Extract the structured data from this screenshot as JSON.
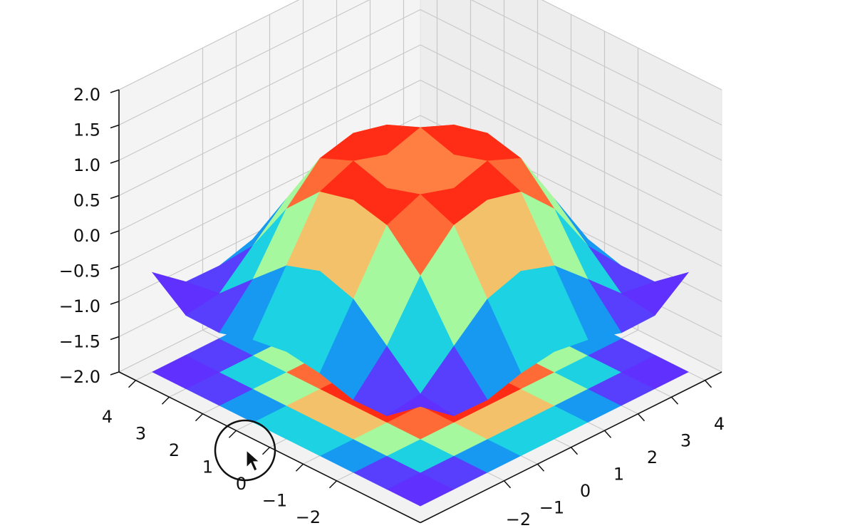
{
  "chart_data": {
    "type": "surface3d",
    "colormap": "rainbow",
    "x": [
      -4,
      -3,
      -2,
      -1,
      0,
      1,
      2,
      3,
      4
    ],
    "y": [
      -4,
      -3,
      -2,
      -1,
      0,
      1,
      2,
      3,
      4
    ],
    "z": [
      [
        -0.59,
        -0.96,
        -0.97,
        -0.83,
        -0.76,
        -0.83,
        -0.97,
        -0.96,
        -0.59
      ],
      [
        -0.96,
        -0.89,
        -0.45,
        -0.02,
        0.14,
        -0.02,
        -0.45,
        -0.89,
        -0.96
      ],
      [
        -0.97,
        -0.45,
        0.31,
        0.79,
        0.91,
        0.79,
        0.31,
        -0.45,
        -0.97
      ],
      [
        -0.83,
        -0.02,
        0.79,
        0.99,
        0.84,
        0.99,
        0.79,
        -0.02,
        -0.83
      ],
      [
        -0.76,
        0.14,
        0.91,
        0.84,
        0,
        0.84,
        0.91,
        0.14,
        -0.76
      ],
      [
        -0.83,
        -0.02,
        0.79,
        0.99,
        0.84,
        0.99,
        0.79,
        -0.02,
        -0.83
      ],
      [
        -0.97,
        -0.45,
        0.31,
        0.79,
        0.91,
        0.79,
        0.31,
        -0.45,
        -0.97
      ],
      [
        -0.96,
        -0.89,
        -0.45,
        -0.02,
        0.14,
        -0.02,
        -0.45,
        -0.89,
        -0.96
      ],
      [
        -0.59,
        -0.96,
        -0.97,
        -0.83,
        -0.76,
        -0.83,
        -0.97,
        -0.96,
        -0.59
      ]
    ],
    "floor_contour": true,
    "xlim": [
      -4.5,
      4.5
    ],
    "ylim": [
      -4.5,
      4.5
    ],
    "zlim": [
      -2,
      2
    ],
    "xticks": [
      {
        "value": -2,
        "label": "−2"
      },
      {
        "value": -1,
        "label": "−1"
      },
      0,
      1,
      2,
      3,
      4
    ],
    "yticks": [
      {
        "value": -2,
        "label": "−2"
      },
      {
        "value": -1,
        "label": "−1"
      },
      0,
      1,
      2,
      3,
      4
    ],
    "zticks": [
      {
        "value": -2,
        "label": "−2.0"
      },
      {
        "value": -1.5,
        "label": "−1.5"
      },
      {
        "value": -1,
        "label": "−1.0"
      },
      {
        "value": -0.5,
        "label": "−0.5"
      },
      {
        "value": 0,
        "label": "0.0"
      },
      {
        "value": 0.5,
        "label": "0.5"
      },
      {
        "value": 1,
        "label": "1.0"
      },
      {
        "value": 1.5,
        "label": "1.5"
      },
      {
        "value": 2,
        "label": "2.0"
      }
    ],
    "grid": true
  }
}
